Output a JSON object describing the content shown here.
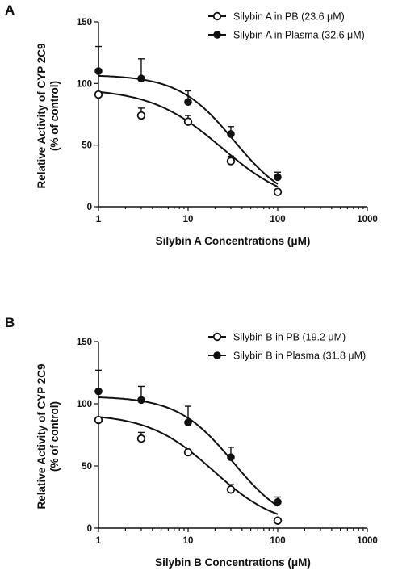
{
  "chart_data": [
    {
      "type": "scatter",
      "panel": "A",
      "xlabel": "Silybin A Concentrations (μM)",
      "ylabel": "Relative Activity of CYP 2C9",
      "ylabel_sub": "(% of control)",
      "x_scale": "log",
      "xlim": [
        1,
        1000
      ],
      "ylim": [
        0,
        150
      ],
      "x_ticks": [
        1,
        10,
        100,
        1000
      ],
      "x_tick_labels": [
        "1",
        "10",
        "100",
        "1000"
      ],
      "y_ticks": [
        0,
        50,
        100,
        150
      ],
      "y_tick_labels": [
        "0",
        "50",
        "100",
        "150"
      ],
      "legend_position": "top-right",
      "grid": false,
      "series": [
        {
          "name": "Silybin A in PB (23.6 μM)",
          "marker": "open-circle",
          "color": "#111111",
          "x": [
            1,
            3,
            10,
            30,
            100
          ],
          "y": [
            91,
            74,
            69,
            37,
            12
          ],
          "error": [
            0,
            6,
            5,
            4,
            0
          ],
          "fit": {
            "top": 96,
            "bottom": 0,
            "ic50": 23.6,
            "hill": 1.1
          }
        },
        {
          "name": "Silybin A in Plasma (32.6 μM)",
          "marker": "filled-circle",
          "color": "#111111",
          "x": [
            1,
            3,
            10,
            30,
            100
          ],
          "y": [
            110,
            104,
            85,
            59,
            24
          ],
          "error": [
            20,
            16,
            9,
            6,
            4
          ],
          "fit": {
            "top": 107,
            "bottom": 0,
            "ic50": 32.6,
            "hill": 1.4
          }
        }
      ]
    },
    {
      "type": "scatter",
      "panel": "B",
      "xlabel": "Silybin B Concentrations (μM)",
      "ylabel": "Relative Activity of CYP 2C9",
      "ylabel_sub": "(% of control)",
      "x_scale": "log",
      "xlim": [
        1,
        1000
      ],
      "ylim": [
        0,
        150
      ],
      "x_ticks": [
        1,
        10,
        100,
        1000
      ],
      "x_tick_labels": [
        "1",
        "10",
        "100",
        "1000"
      ],
      "y_ticks": [
        0,
        50,
        100,
        150
      ],
      "y_tick_labels": [
        "0",
        "50",
        "100",
        "150"
      ],
      "legend_position": "top-right",
      "grid": false,
      "series": [
        {
          "name": "Silybin B in PB (19.2 μM)",
          "marker": "open-circle",
          "color": "#111111",
          "x": [
            1,
            3,
            10,
            30,
            100
          ],
          "y": [
            87,
            72,
            61,
            31,
            6
          ],
          "error": [
            0,
            5,
            2,
            4,
            0
          ],
          "fit": {
            "top": 92,
            "bottom": 0,
            "ic50": 19.2,
            "hill": 1.2
          }
        },
        {
          "name": "Silybin B in Plasma (31.8 μM)",
          "marker": "filled-circle",
          "color": "#111111",
          "x": [
            1,
            3,
            10,
            30,
            100
          ],
          "y": [
            110,
            103,
            85,
            57,
            21
          ],
          "error": [
            17,
            11,
            13,
            8,
            4
          ],
          "fit": {
            "top": 106,
            "bottom": 0,
            "ic50": 31.8,
            "hill": 1.4
          }
        }
      ]
    }
  ]
}
